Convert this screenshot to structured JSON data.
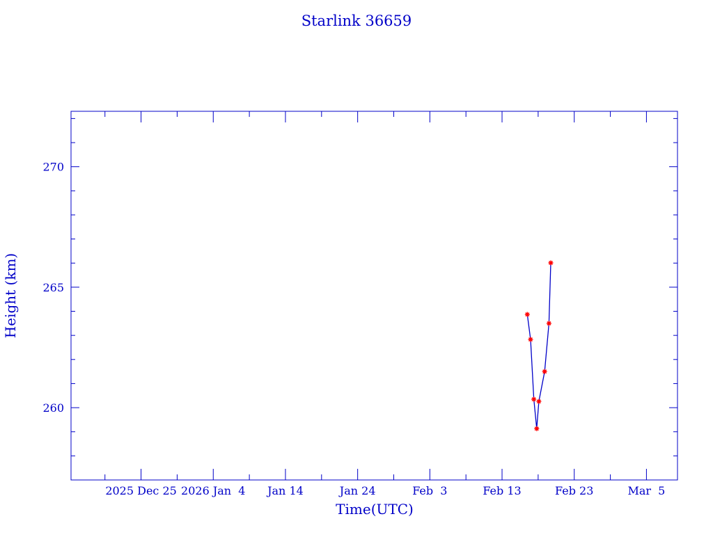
{
  "chart_data": {
    "type": "line",
    "title": "Starlink 36659",
    "xlabel": "Time(UTC)",
    "ylabel": "Height (km)",
    "x_axis_unit": "days relative to 2025 Dec 25",
    "xlim": [
      -9.7,
      74.3
    ],
    "ylim": [
      257.0,
      272.3
    ],
    "x_tick_labels": [
      {
        "day": 0,
        "label": "2025 Dec 25"
      },
      {
        "day": 10,
        "label": "2026 Jan  4"
      },
      {
        "day": 20,
        "label": "Jan 14"
      },
      {
        "day": 30,
        "label": "Jan 24"
      },
      {
        "day": 40,
        "label": "Feb  3"
      },
      {
        "day": 50,
        "label": "Feb 13"
      },
      {
        "day": 60,
        "label": "Feb 23"
      },
      {
        "day": 70,
        "label": "Mar  5"
      }
    ],
    "y_ticks": [
      260,
      265,
      270
    ],
    "grid": false,
    "series": [
      {
        "name": "Height",
        "line_color": "#0000c8",
        "marker_color": "#ff0000",
        "x": [
          53.5,
          53.95,
          54.4,
          54.8,
          55.1,
          55.9,
          56.5,
          56.75
        ],
        "y": [
          263.87,
          262.83,
          260.35,
          259.13,
          260.26,
          261.5,
          263.5,
          266.01
        ]
      }
    ]
  }
}
